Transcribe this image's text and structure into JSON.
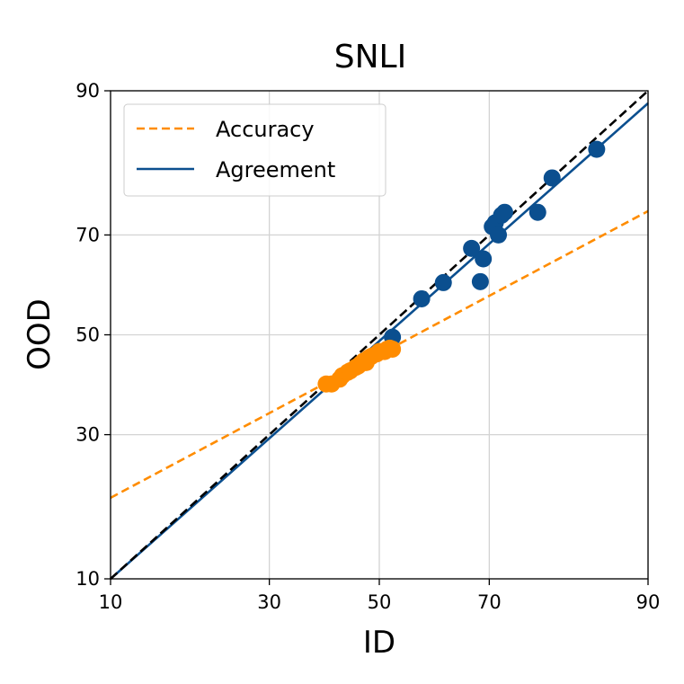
{
  "chart_data": {
    "type": "scatter",
    "title": "SNLI",
    "xlabel": "ID",
    "ylabel": "OOD",
    "scale": "probit",
    "xlim": [
      10,
      90
    ],
    "ylim": [
      10,
      90
    ],
    "xticks": [
      10,
      30,
      50,
      70,
      90
    ],
    "yticks": [
      10,
      30,
      50,
      70,
      90
    ],
    "grid": true,
    "legend_position": "top-left",
    "series": [
      {
        "name": "Accuracy",
        "kind": "dashed-line",
        "color": "#ff8c00",
        "x": [
          10,
          90
        ],
        "y": [
          19.6,
          74.2
        ]
      },
      {
        "name": "Agreement",
        "kind": "solid-line",
        "color": "#0b4f8f",
        "x": [
          10,
          90
        ],
        "y": [
          10,
          88.8
        ]
      },
      {
        "kind": "diagonal",
        "color": "#000000",
        "x": [
          10,
          90
        ],
        "y": [
          10,
          90
        ]
      }
    ],
    "points": {
      "accuracy": {
        "color": "#ff8c00",
        "x": [
          40.0,
          41.0,
          42.5,
          43.0,
          44.0,
          44.5,
          45.5,
          46.0,
          46.5,
          47.0,
          47.5,
          48.0,
          48.5,
          49.5,
          50.0,
          51.0,
          51.5,
          52.0,
          52.5
        ],
        "y": [
          39.8,
          39.8,
          40.8,
          41.5,
          42.2,
          42.5,
          43.2,
          43.5,
          44.0,
          44.5,
          44.2,
          45.2,
          45.5,
          46.0,
          46.5,
          46.5,
          47.0,
          47.2,
          47.0
        ]
      },
      "agreement": {
        "color": "#0b4f8f",
        "x": [
          52.5,
          58.0,
          62.0,
          67.0,
          68.5,
          69.0,
          70.5,
          71.0,
          71.5,
          72.0,
          72.5,
          77.5,
          79.5,
          85.0
        ],
        "y": [
          49.5,
          57.5,
          60.8,
          67.5,
          61.0,
          65.5,
          71.5,
          72.2,
          70.0,
          73.5,
          74.0,
          74.0,
          79.5,
          83.5
        ]
      }
    }
  }
}
